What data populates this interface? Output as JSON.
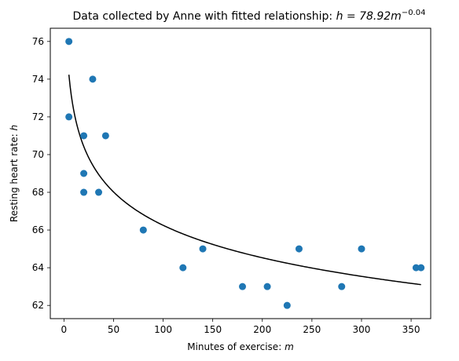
{
  "chart_data": {
    "type": "scatter",
    "title_prefix": "Data collected by Anne with fitted relationship: ",
    "title_formula": "h = 78.92m",
    "title_exponent": "−0.04",
    "xlabel_prefix": "Minutes of exercise: ",
    "xlabel_var": "m",
    "ylabel_prefix": "Resting heart rate: ",
    "ylabel_var": "h",
    "xlim": [
      -13.75,
      369.75
    ],
    "ylim": [
      61.3,
      76.7
    ],
    "xticks": [
      0,
      50,
      100,
      150,
      200,
      250,
      300,
      350
    ],
    "yticks": [
      62,
      64,
      66,
      68,
      70,
      72,
      74,
      76
    ],
    "points": [
      {
        "x": 5,
        "y": 76
      },
      {
        "x": 5,
        "y": 72
      },
      {
        "x": 29,
        "y": 74
      },
      {
        "x": 20,
        "y": 71
      },
      {
        "x": 42,
        "y": 71
      },
      {
        "x": 20,
        "y": 69
      },
      {
        "x": 20,
        "y": 68
      },
      {
        "x": 35,
        "y": 68
      },
      {
        "x": 80,
        "y": 66
      },
      {
        "x": 120,
        "y": 64
      },
      {
        "x": 140,
        "y": 65
      },
      {
        "x": 180,
        "y": 63
      },
      {
        "x": 205,
        "y": 63
      },
      {
        "x": 225,
        "y": 62
      },
      {
        "x": 237,
        "y": 65
      },
      {
        "x": 280,
        "y": 63
      },
      {
        "x": 300,
        "y": 65
      },
      {
        "x": 355,
        "y": 64
      },
      {
        "x": 360,
        "y": 64
      }
    ],
    "fit": {
      "a": 78.92,
      "b": -0.038,
      "x_start": 5,
      "x_end": 360
    },
    "colors": {
      "points": "#1f77b4",
      "fit": "#000000"
    }
  }
}
